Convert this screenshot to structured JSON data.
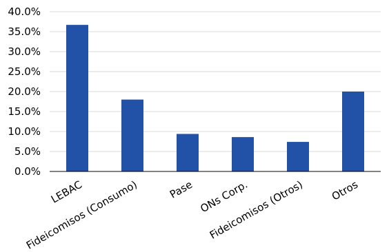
{
  "chart_data": {
    "type": "bar",
    "categories": [
      "LEBAC",
      "Fideicomisos (Consumo)",
      "Pase",
      "ONs Corp.",
      "Fideicomisos (Otros)",
      "Otros"
    ],
    "values": [
      36.7,
      18.0,
      9.4,
      8.6,
      7.4,
      20.0
    ],
    "title": "",
    "xlabel": "",
    "ylabel": "",
    "ylim": [
      0,
      40
    ],
    "yticks": [
      0,
      5,
      10,
      15,
      20,
      25,
      30,
      35,
      40
    ],
    "ytick_labels": [
      "0.0%",
      "5.0%",
      "10.0%",
      "15.0%",
      "20.0%",
      "25.0%",
      "30.0%",
      "35.0%",
      "40.0%"
    ],
    "grid": true,
    "legend": "none",
    "colors": {
      "bar": "#2152A8",
      "grid": "#d9d9d9",
      "axis": "#000000",
      "text": "#000000"
    }
  }
}
